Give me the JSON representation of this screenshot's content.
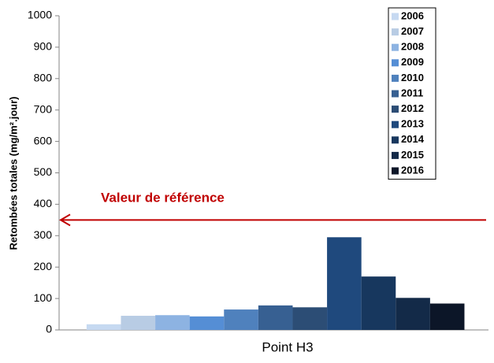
{
  "chart_data": {
    "type": "bar",
    "y_label": "Retombées totales (mg/m².jour)",
    "categories": [
      "Point H3"
    ],
    "series": [
      {
        "name": "2006",
        "color": "#c6d9f1",
        "values": [
          18
        ]
      },
      {
        "name": "2007",
        "color": "#b8cce4",
        "values": [
          45
        ]
      },
      {
        "name": "2008",
        "color": "#8db3e2",
        "values": [
          47
        ]
      },
      {
        "name": "2009",
        "color": "#558ed5",
        "values": [
          43
        ]
      },
      {
        "name": "2010",
        "color": "#4f81bd",
        "values": [
          65
        ]
      },
      {
        "name": "2011",
        "color": "#376092",
        "values": [
          78
        ]
      },
      {
        "name": "2012",
        "color": "#2c4d75",
        "values": [
          72
        ]
      },
      {
        "name": "2013",
        "color": "#1f497d",
        "values": [
          295
        ]
      },
      {
        "name": "2014",
        "color": "#17375e",
        "values": [
          170
        ]
      },
      {
        "name": "2015",
        "color": "#132a48",
        "values": [
          102
        ]
      },
      {
        "name": "2016",
        "color": "#0c1628",
        "values": [
          84
        ]
      }
    ],
    "ylim": [
      0,
      1000
    ],
    "yticks": [
      0,
      100,
      200,
      300,
      400,
      500,
      600,
      700,
      800,
      900,
      1000
    ],
    "reference_line": {
      "value": 350,
      "label": "Valeur de référence",
      "color": "#c00000"
    },
    "legend": "upper right"
  }
}
